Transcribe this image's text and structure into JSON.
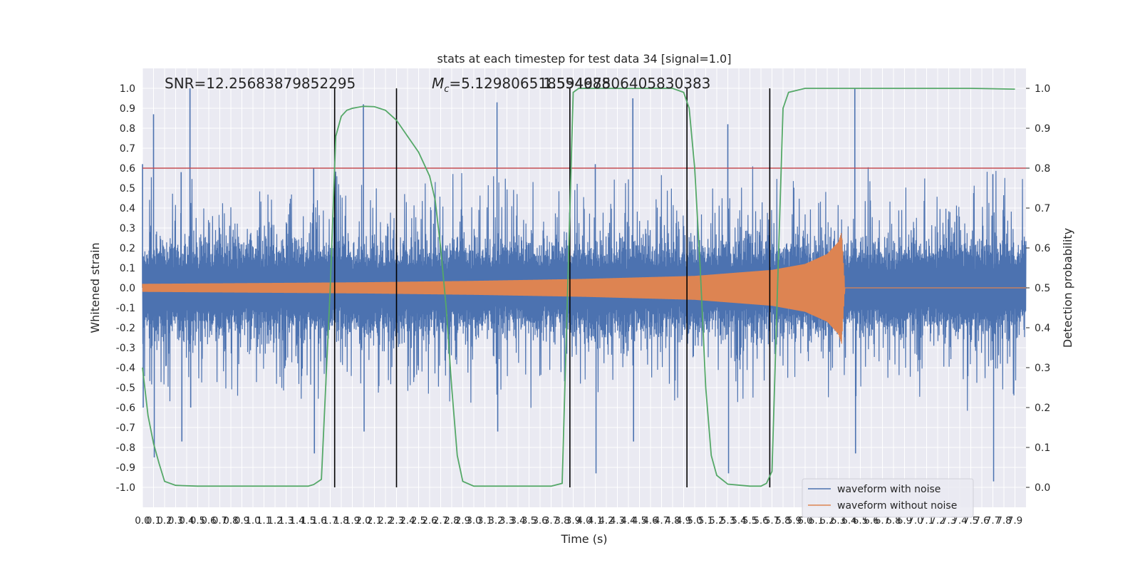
{
  "chart_data": {
    "type": "line",
    "title": "stats at each timestep for test data 34 [signal=1.0]",
    "xlabel": "Time (s)",
    "ylabel": "Whitened strain",
    "y2label": "Detection probability",
    "xlim": [
      0.0,
      8.0
    ],
    "ylim": [
      -1.1,
      1.1
    ],
    "y2lim": [
      -0.05,
      1.05
    ],
    "x_ticks": [
      0.0,
      0.1,
      0.2,
      0.3,
      0.4,
      0.5,
      0.6,
      0.7,
      0.8,
      0.9,
      1.0,
      1.1,
      1.2,
      1.3,
      1.4,
      1.5,
      1.6,
      1.7,
      1.8,
      1.9,
      2.0,
      2.1,
      2.2,
      2.3,
      2.4,
      2.5,
      2.6,
      2.7,
      2.8,
      2.9,
      3.0,
      3.1,
      3.2,
      3.3,
      3.4,
      3.5,
      3.6,
      3.7,
      3.8,
      3.9,
      4.0,
      4.1,
      4.2,
      4.3,
      4.4,
      4.5,
      4.6,
      4.7,
      4.8,
      4.9,
      5.0,
      5.1,
      5.2,
      5.3,
      5.4,
      5.5,
      5.6,
      5.7,
      5.8,
      5.9,
      6.0,
      6.1,
      6.2,
      6.3,
      6.4,
      6.5,
      6.6,
      6.7,
      6.8,
      6.9,
      7.0,
      7.1,
      7.2,
      7.3,
      7.4,
      7.5,
      7.6,
      7.7,
      7.8,
      7.9
    ],
    "y_ticks": [
      -1.0,
      -0.9,
      -0.8,
      -0.7,
      -0.6,
      -0.5,
      -0.4,
      -0.3,
      -0.2,
      -0.1,
      0.0,
      0.1,
      0.2,
      0.3,
      0.4,
      0.5,
      0.6,
      0.7,
      0.8,
      0.9,
      1.0
    ],
    "y2_ticks": [
      0.0,
      0.1,
      0.2,
      0.3,
      0.4,
      0.5,
      0.6,
      0.7,
      0.8,
      0.9,
      1.0
    ],
    "annotations": {
      "snr": "SNR=12.25683879852295",
      "mc_symbol": "M",
      "mc_sub": "c",
      "mc_value": "=5.129806518554688",
      "overlap": "1.59497506405830383"
    },
    "threshold": 0.8,
    "vertical_lines": [
      1.74,
      2.3,
      3.87,
      4.93,
      5.68
    ],
    "series": [
      {
        "name": "waveform with noise",
        "color": "#4c72b0",
        "envelope_points": [
          {
            "x": 0.0,
            "upper": 0.62,
            "lower": -0.6
          },
          {
            "x": 0.1,
            "upper": 0.87,
            "lower": -0.85
          },
          {
            "x": 0.35,
            "upper": 0.58,
            "lower": -0.77
          },
          {
            "x": 0.43,
            "upper": 1.0,
            "lower": -0.6
          },
          {
            "x": 1.55,
            "upper": 0.6,
            "lower": -0.83
          },
          {
            "x": 2.0,
            "upper": 0.92,
            "lower": -0.72
          },
          {
            "x": 3.21,
            "upper": 0.93,
            "lower": -0.72
          },
          {
            "x": 4.1,
            "upper": 0.62,
            "lower": -0.93
          },
          {
            "x": 4.44,
            "upper": 0.95,
            "lower": -0.77
          },
          {
            "x": 5.3,
            "upper": 0.82,
            "lower": -0.93
          },
          {
            "x": 6.45,
            "upper": 1.0,
            "lower": -0.83
          },
          {
            "x": 7.7,
            "upper": 0.57,
            "lower": -0.97
          }
        ]
      },
      {
        "name": "waveform without noise",
        "color": "#dd8452",
        "envelope_points": [
          {
            "x": 0.0,
            "amp": 0.02
          },
          {
            "x": 1.0,
            "amp": 0.024
          },
          {
            "x": 2.0,
            "amp": 0.028
          },
          {
            "x": 3.0,
            "amp": 0.035
          },
          {
            "x": 4.0,
            "amp": 0.045
          },
          {
            "x": 5.0,
            "amp": 0.06
          },
          {
            "x": 5.7,
            "amp": 0.09
          },
          {
            "x": 6.0,
            "amp": 0.12
          },
          {
            "x": 6.2,
            "amp": 0.17
          },
          {
            "x": 6.3,
            "amp": 0.23
          },
          {
            "x": 6.33,
            "amp": 0.28
          },
          {
            "x": 6.36,
            "amp": 0.0
          },
          {
            "x": 8.0,
            "amp": 0.0
          }
        ]
      },
      {
        "name": "detection probability",
        "color": "#55a868",
        "axis": "right",
        "x": [
          0.0,
          0.05,
          0.1,
          0.15,
          0.2,
          0.3,
          0.5,
          1.0,
          1.5,
          1.55,
          1.62,
          1.7,
          1.75,
          1.8,
          1.85,
          1.9,
          2.0,
          2.1,
          2.2,
          2.3,
          2.4,
          2.5,
          2.6,
          2.65,
          2.7,
          2.75,
          2.8,
          2.85,
          2.9,
          3.0,
          3.3,
          3.7,
          3.8,
          3.85,
          3.9,
          3.95,
          4.2,
          4.5,
          4.8,
          4.9,
          4.95,
          5.0,
          5.05,
          5.1,
          5.15,
          5.2,
          5.3,
          5.5,
          5.6,
          5.65,
          5.7,
          5.75,
          5.8,
          5.85,
          6.0,
          6.5,
          7.0,
          7.5,
          7.9
        ],
        "values": [
          0.3,
          0.18,
          0.11,
          0.06,
          0.015,
          0.005,
          0.003,
          0.003,
          0.003,
          0.007,
          0.02,
          0.5,
          0.88,
          0.93,
          0.945,
          0.95,
          0.955,
          0.954,
          0.945,
          0.92,
          0.88,
          0.84,
          0.78,
          0.72,
          0.6,
          0.45,
          0.25,
          0.08,
          0.015,
          0.003,
          0.003,
          0.003,
          0.01,
          0.5,
          0.99,
          1.0,
          1.0,
          1.0,
          1.0,
          0.99,
          0.95,
          0.8,
          0.55,
          0.25,
          0.08,
          0.03,
          0.008,
          0.003,
          0.003,
          0.01,
          0.04,
          0.5,
          0.95,
          0.99,
          1.0,
          1.0,
          1.0,
          1.0,
          0.998
        ]
      }
    ],
    "legend_location": "lower-right"
  }
}
